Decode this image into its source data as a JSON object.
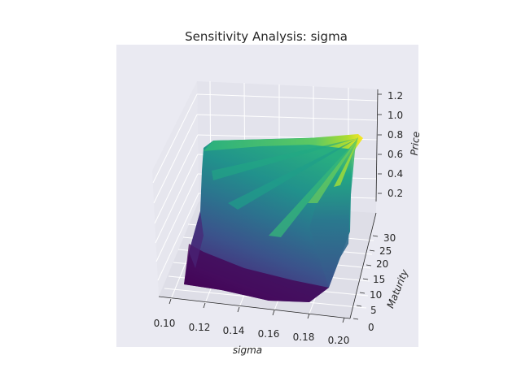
{
  "chart_data": {
    "type": "surface",
    "title": "Sensitivity Analysis: sigma",
    "xlabel": "sigma",
    "ylabel": "Maturity",
    "zlabel": "Price",
    "x_ticks": [
      "0.10",
      "0.12",
      "0.14",
      "0.16",
      "0.18",
      "0.20"
    ],
    "y_ticks": [
      "0",
      "5",
      "10",
      "15",
      "20",
      "25",
      "30"
    ],
    "z_ticks": [
      "0.2",
      "0.4",
      "0.6",
      "0.8",
      "1.0",
      "1.2"
    ],
    "xlim": [
      0.1,
      0.2
    ],
    "ylim": [
      0,
      30
    ],
    "zlim": [
      0,
      1.25
    ],
    "colormap": "viridis",
    "grid": true,
    "style": "seaborn darkgrid",
    "surface_samples": [
      {
        "sigma": 0.1,
        "maturity": 0,
        "price": 0.01
      },
      {
        "sigma": 0.2,
        "maturity": 0,
        "price": 0.02
      },
      {
        "sigma": 0.1,
        "maturity": 30,
        "price": 0.8
      },
      {
        "sigma": 0.2,
        "maturity": 30,
        "price": 0.85
      },
      {
        "sigma": 0.15,
        "maturity": 15,
        "price": 0.5
      },
      {
        "sigma": 0.2,
        "maturity": 28,
        "price": 1.0
      }
    ]
  }
}
